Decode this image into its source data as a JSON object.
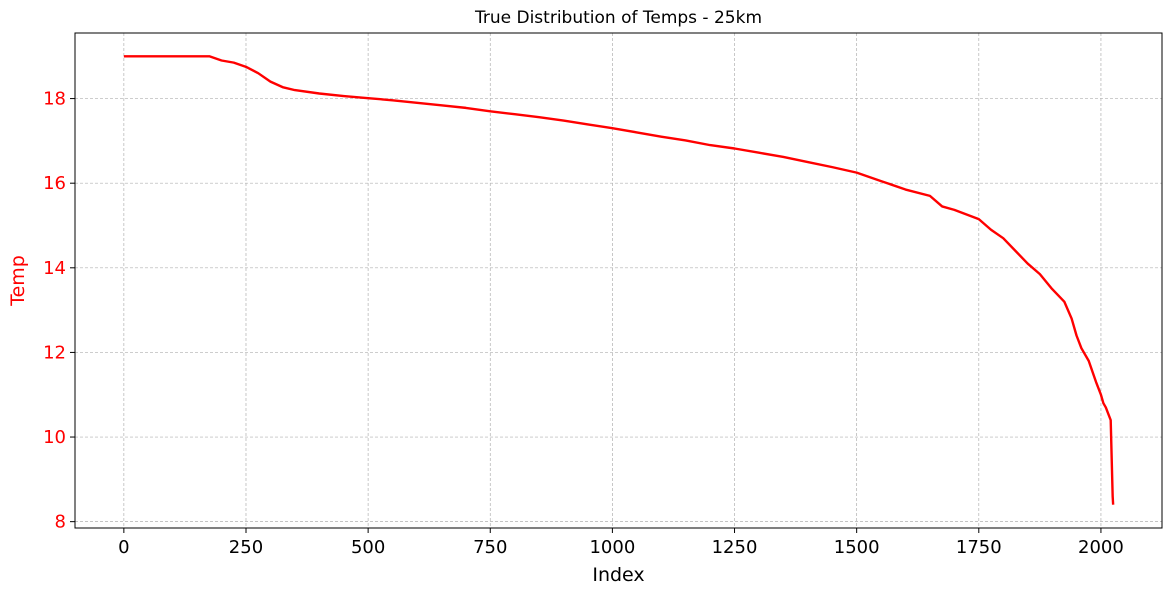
{
  "chart_data": {
    "type": "line",
    "title": "True Distribution of Temps - 25km",
    "xlabel": "Index",
    "ylabel": "Temp",
    "xlim": [
      -100,
      2125
    ],
    "ylim": [
      7.85,
      19.55
    ],
    "xticks": [
      0,
      250,
      500,
      750,
      1000,
      1250,
      1500,
      1750,
      2000
    ],
    "yticks": [
      8,
      10,
      12,
      14,
      16,
      18
    ],
    "grid": true,
    "legend": "none",
    "colors": {
      "line": "#ff0000",
      "ylabel": "#ff0000",
      "yticks": "#ff0000",
      "xticks": "#000000",
      "grid": "#b0b0b0"
    },
    "series": [
      {
        "x": [
          0,
          50,
          100,
          150,
          175,
          200,
          225,
          250,
          275,
          300,
          325,
          350,
          400,
          450,
          500,
          550,
          600,
          650,
          700,
          750,
          800,
          850,
          900,
          950,
          1000,
          1050,
          1100,
          1150,
          1200,
          1250,
          1300,
          1350,
          1400,
          1450,
          1500,
          1525,
          1550,
          1600,
          1650,
          1675,
          1700,
          1750,
          1775,
          1800,
          1825,
          1850,
          1875,
          1900,
          1925,
          1940,
          1950,
          1960,
          1975,
          1990,
          2000,
          2005,
          2010,
          2015,
          2020,
          2022,
          2024,
          2025
        ],
        "y": [
          19.0,
          19.0,
          19.0,
          19.0,
          19.0,
          18.9,
          18.85,
          18.75,
          18.6,
          18.4,
          18.27,
          18.2,
          18.12,
          18.06,
          18.01,
          17.96,
          17.9,
          17.84,
          17.78,
          17.7,
          17.63,
          17.56,
          17.48,
          17.39,
          17.3,
          17.2,
          17.1,
          17.01,
          16.9,
          16.82,
          16.72,
          16.62,
          16.5,
          16.38,
          16.25,
          16.15,
          16.05,
          15.85,
          15.7,
          15.45,
          15.37,
          15.15,
          14.9,
          14.7,
          14.4,
          14.1,
          13.85,
          13.5,
          13.2,
          12.8,
          12.4,
          12.1,
          11.8,
          11.3,
          11.0,
          10.8,
          10.7,
          10.55,
          10.4,
          9.5,
          8.6,
          8.4
        ]
      }
    ]
  }
}
